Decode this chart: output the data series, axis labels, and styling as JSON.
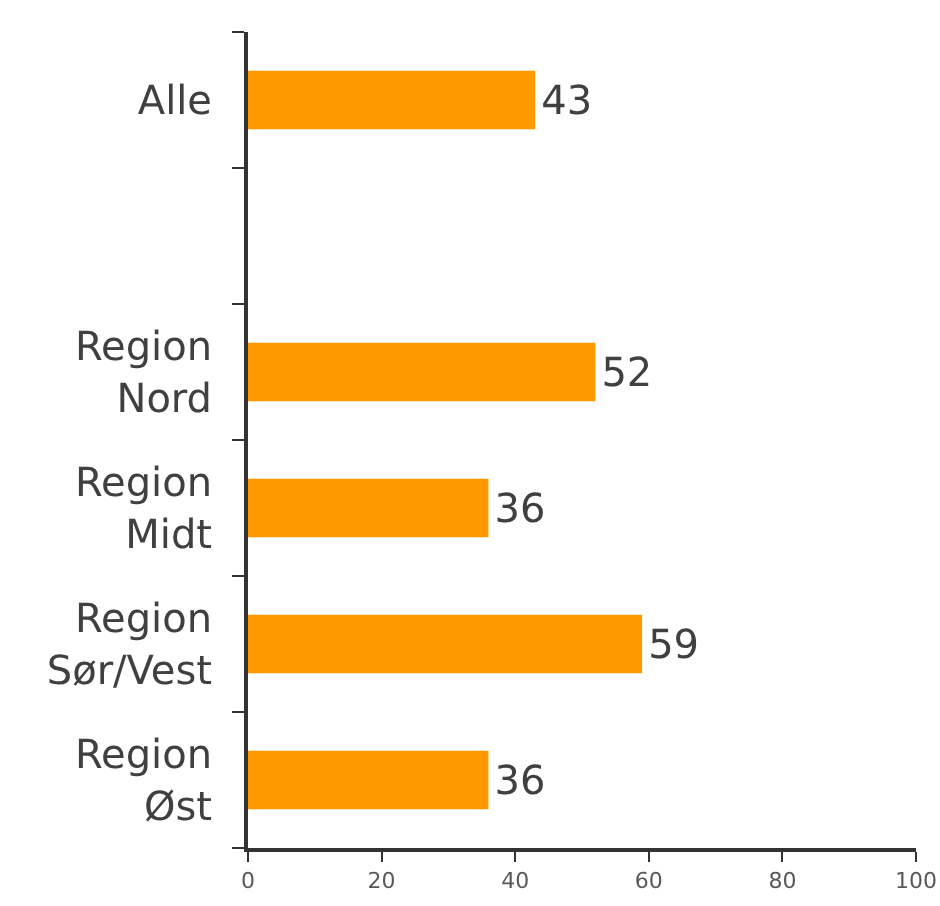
{
  "chart_data": {
    "type": "bar",
    "orientation": "horizontal",
    "categories": [
      "Alle",
      null,
      "Region\nNord",
      "Region\nMidt",
      "Region\nSør/Vest",
      "Region\nØst"
    ],
    "values": [
      43,
      null,
      52,
      36,
      59,
      36
    ],
    "color": "#ff9900",
    "xlim": [
      0,
      100
    ],
    "xticks": [
      0,
      20,
      40,
      60,
      80,
      100
    ],
    "data_labels": true,
    "grid": false
  }
}
